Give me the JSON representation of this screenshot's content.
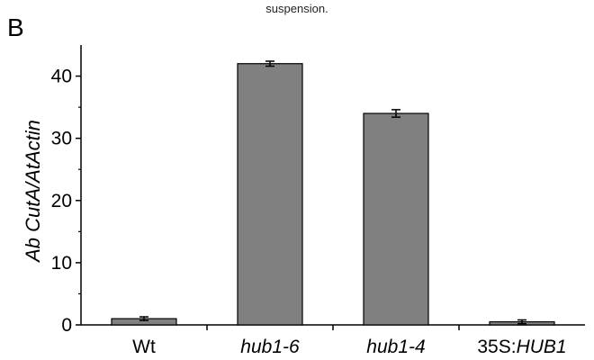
{
  "caption_fragment": "suspension.",
  "panel_label": "B",
  "chart_data": {
    "type": "bar",
    "title": "",
    "ylabel": "Ab CutA/AtActin",
    "xlabel": "",
    "ylim": [
      0,
      45
    ],
    "yticks": [
      0,
      10,
      20,
      30,
      40
    ],
    "grid": false,
    "legend": "none",
    "bar_color": "#808080",
    "categories": [
      "Wt",
      "hub1-6",
      "hub1-4",
      "35S:HUB1"
    ],
    "category_label_parts": [
      [
        {
          "text": "Wt",
          "italic": false
        }
      ],
      [
        {
          "text": "hub1-6",
          "italic": true
        }
      ],
      [
        {
          "text": "hub1-4",
          "italic": true
        }
      ],
      [
        {
          "text": "35S:",
          "italic": false
        },
        {
          "text": "HUB1",
          "italic": true
        }
      ]
    ],
    "values": [
      1.0,
      42.0,
      34.0,
      0.5
    ],
    "errors": [
      0.3,
      0.4,
      0.6,
      0.3
    ]
  }
}
